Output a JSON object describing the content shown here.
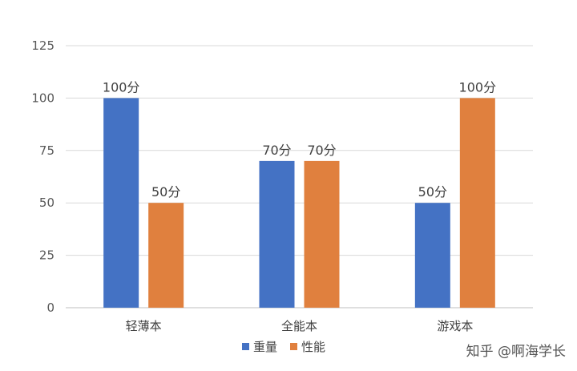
{
  "chart_data": {
    "type": "bar",
    "title": "",
    "xlabel": "",
    "ylabel": "",
    "categories": [
      "轻薄本",
      "全能本",
      "游戏本"
    ],
    "series": [
      {
        "name": "重量",
        "values": [
          100,
          70,
          50
        ],
        "labels": [
          "100分",
          "70分",
          "50分"
        ],
        "color": "#4472C4"
      },
      {
        "name": "性能",
        "values": [
          50,
          70,
          100
        ],
        "labels": [
          "50分",
          "70分",
          "100分"
        ],
        "color": "#E0803E"
      }
    ],
    "ylim": [
      0,
      125
    ],
    "yticks": [
      0,
      25,
      50,
      75,
      100,
      125
    ],
    "grid": true,
    "legend": "bottom-center"
  },
  "watermark": "知乎 @啊海学长"
}
